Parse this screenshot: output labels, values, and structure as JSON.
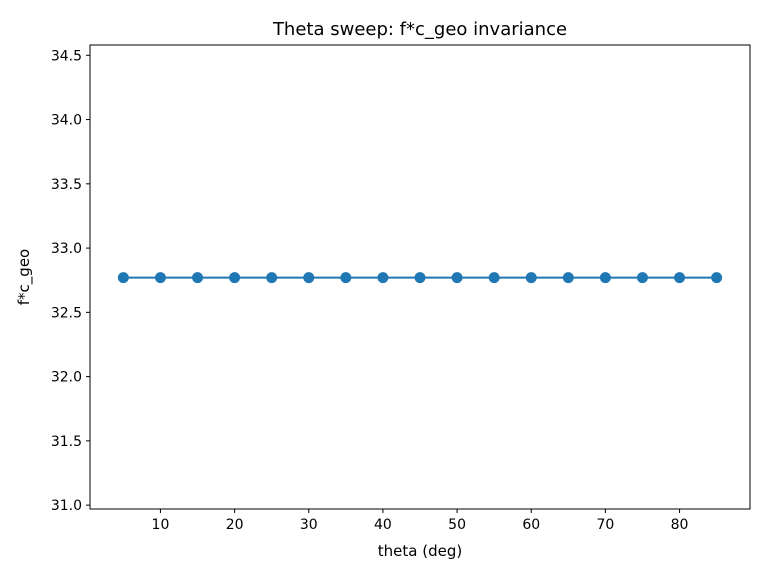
{
  "chart_data": {
    "type": "line",
    "title": "Theta sweep: f*c_geo invariance",
    "xlabel": "theta (deg)",
    "ylabel": "f*c_geo",
    "xlim": [
      0.5,
      89.5
    ],
    "ylim": [
      30.97,
      34.58
    ],
    "x_ticks": [
      10,
      20,
      30,
      40,
      50,
      60,
      70,
      80
    ],
    "x_tick_labels": [
      "10",
      "20",
      "30",
      "40",
      "50",
      "60",
      "70",
      "80"
    ],
    "y_ticks": [
      31.0,
      31.5,
      32.0,
      32.5,
      33.0,
      33.5,
      34.0,
      34.5
    ],
    "y_tick_labels": [
      "31.0",
      "31.5",
      "32.0",
      "32.5",
      "33.0",
      "33.5",
      "34.0",
      "34.5"
    ],
    "grid": false,
    "series": [
      {
        "color": "#1f77b4",
        "marker": "circle",
        "x": [
          5,
          10,
          15,
          20,
          25,
          30,
          35,
          40,
          45,
          50,
          55,
          60,
          65,
          70,
          75,
          80,
          85
        ],
        "y": [
          32.77,
          32.77,
          32.77,
          32.77,
          32.77,
          32.77,
          32.77,
          32.77,
          32.77,
          32.77,
          32.77,
          32.77,
          32.77,
          32.77,
          32.77,
          32.77,
          32.77
        ]
      }
    ]
  }
}
